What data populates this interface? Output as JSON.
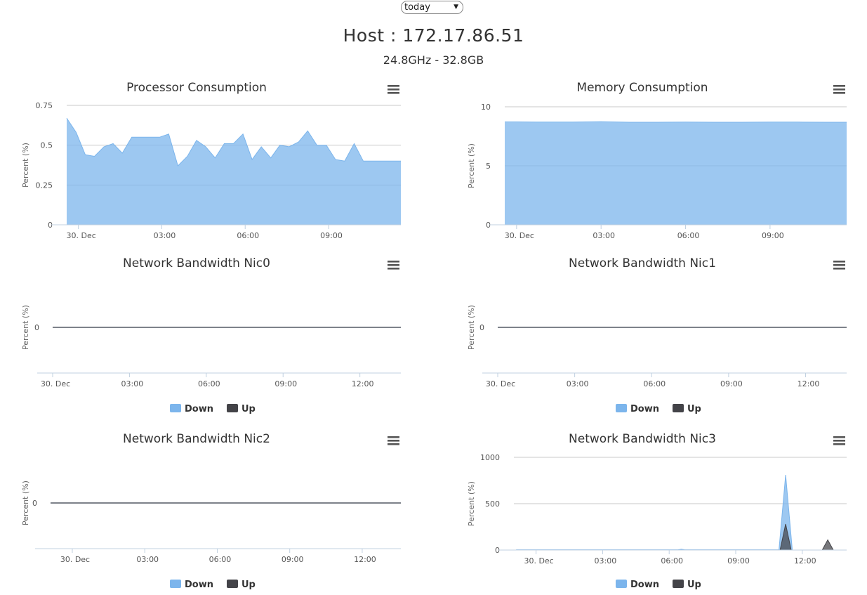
{
  "range_select": {
    "value": "today"
  },
  "host": {
    "title": "Host : 172.17.86.51",
    "specs": "24.8GHz - 32.8GB"
  },
  "chart_data": [
    {
      "id": "cpu",
      "type": "area",
      "title": "Processor Consumption",
      "ylabel": "Percent (%)",
      "ylim": [
        0,
        0.75
      ],
      "yticks": [
        "0",
        "0.25",
        "0.5",
        "0.75"
      ],
      "xlim": [
        -0.42,
        11.6
      ],
      "xticks": [
        {
          "label": "30. Dec",
          "x": 0
        },
        {
          "label": "03:00",
          "x": 3
        },
        {
          "label": "06:00",
          "x": 6
        },
        {
          "label": "09:00",
          "x": 9
        }
      ],
      "series": [
        {
          "color": "#7cb5ec",
          "x": [
            -0.42,
            -0.08,
            0.25,
            0.58,
            0.92,
            1.25,
            1.58,
            1.92,
            2.25,
            2.58,
            2.92,
            3.25,
            3.58,
            3.92,
            4.25,
            4.58,
            4.92,
            5.25,
            5.58,
            5.92,
            6.25,
            6.58,
            6.92,
            7.25,
            7.58,
            7.92,
            8.25,
            8.58,
            8.92,
            9.25,
            9.58,
            9.92,
            10.25,
            10.58,
            10.92,
            11.25,
            11.6
          ],
          "values": [
            0.67,
            0.58,
            0.44,
            0.43,
            0.49,
            0.51,
            0.45,
            0.55,
            0.55,
            0.55,
            0.55,
            0.57,
            0.37,
            0.43,
            0.53,
            0.49,
            0.42,
            0.51,
            0.51,
            0.57,
            0.41,
            0.49,
            0.42,
            0.5,
            0.49,
            0.52,
            0.59,
            0.5,
            0.5,
            0.41,
            0.4,
            0.51,
            0.4,
            0.4,
            0.4,
            0.4,
            0.4
          ]
        }
      ]
    },
    {
      "id": "mem",
      "type": "area",
      "title": "Memory Consumption",
      "ylabel": "Percent (%)",
      "ylim": [
        0,
        10
      ],
      "yticks": [
        "0",
        "5",
        "10"
      ],
      "xlim": [
        -0.42,
        11.72
      ],
      "xticks": [
        {
          "label": "30. Dec",
          "x": 0
        },
        {
          "label": "03:00",
          "x": 3
        },
        {
          "label": "06:00",
          "x": 6
        },
        {
          "label": "09:00",
          "x": 9
        }
      ],
      "series": [
        {
          "color": "#7cb5ec",
          "x": [
            -0.42,
            0,
            1,
            2,
            3,
            4,
            5,
            6,
            7,
            8,
            9,
            10,
            11,
            11.72
          ],
          "values": [
            8.72,
            8.72,
            8.7,
            8.7,
            8.73,
            8.69,
            8.69,
            8.71,
            8.69,
            8.69,
            8.7,
            8.7,
            8.69,
            8.69
          ]
        }
      ]
    },
    {
      "id": "nic0",
      "type": "area",
      "title": "Network Bandwidth Nic0",
      "ylabel": "Percent (%)",
      "yticks": [
        "0"
      ],
      "xlim": [
        0,
        13.6
      ],
      "xticks": [
        {
          "label": "30. Dec",
          "x": 0
        },
        {
          "label": "03:00",
          "x": 3
        },
        {
          "label": "06:00",
          "x": 6
        },
        {
          "label": "09:00",
          "x": 9
        },
        {
          "label": "12:00",
          "x": 12
        }
      ],
      "legend": [
        "Down",
        "Up"
      ],
      "series": [
        {
          "name": "Down",
          "color": "#7cb5ec",
          "x": [
            0,
            13.6
          ],
          "values": [
            0,
            0
          ]
        },
        {
          "name": "Up",
          "color": "#434348",
          "x": [
            0,
            13.6
          ],
          "values": [
            0,
            0
          ]
        }
      ]
    },
    {
      "id": "nic1",
      "type": "area",
      "title": "Network Bandwidth Nic1",
      "ylabel": "Percent (%)",
      "yticks": [
        "0"
      ],
      "xlim": [
        0,
        13.6
      ],
      "xticks": [
        {
          "label": "30. Dec",
          "x": 0
        },
        {
          "label": "03:00",
          "x": 3
        },
        {
          "label": "06:00",
          "x": 6
        },
        {
          "label": "09:00",
          "x": 9
        },
        {
          "label": "12:00",
          "x": 12
        }
      ],
      "legend": [
        "Down",
        "Up"
      ],
      "series": [
        {
          "name": "Down",
          "color": "#7cb5ec",
          "x": [
            0,
            13.6
          ],
          "values": [
            0,
            0
          ]
        },
        {
          "name": "Up",
          "color": "#434348",
          "x": [
            0,
            13.6
          ],
          "values": [
            0,
            0
          ]
        }
      ]
    },
    {
      "id": "nic2",
      "type": "area",
      "title": "Network Bandwidth Nic2",
      "ylabel": "Percent (%)",
      "yticks": [
        "0"
      ],
      "xlim": [
        -0.9,
        13.6
      ],
      "xticks": [
        {
          "label": "30. Dec",
          "x": 0
        },
        {
          "label": "03:00",
          "x": 3
        },
        {
          "label": "06:00",
          "x": 6
        },
        {
          "label": "09:00",
          "x": 9
        },
        {
          "label": "12:00",
          "x": 12
        }
      ],
      "legend": [
        "Down",
        "Up"
      ],
      "series": [
        {
          "name": "Down",
          "color": "#7cb5ec",
          "x": [
            -0.9,
            13.6
          ],
          "values": [
            0,
            0
          ]
        },
        {
          "name": "Up",
          "color": "#434348",
          "x": [
            -0.9,
            13.6
          ],
          "values": [
            0,
            0
          ]
        }
      ]
    },
    {
      "id": "nic3",
      "type": "area",
      "title": "Network Bandwidth Nic3",
      "ylabel": "Percent (%)",
      "ylim": [
        0,
        1000
      ],
      "yticks": [
        "0",
        "500",
        "1000"
      ],
      "xlim": [
        -1.0,
        14.0
      ],
      "xticks": [
        {
          "label": "30. Dec",
          "x": 0
        },
        {
          "label": "03:00",
          "x": 3
        },
        {
          "label": "06:00",
          "x": 6
        },
        {
          "label": "09:00",
          "x": 9
        },
        {
          "label": "12:00",
          "x": 12
        }
      ],
      "legend": [
        "Down",
        "Up"
      ],
      "series": [
        {
          "name": "Down",
          "color": "#7cb5ec",
          "x": [
            -0.9,
            6.4,
            6.55,
            6.7,
            10.95,
            11.25,
            11.55,
            13.5
          ],
          "values": [
            3,
            3,
            8,
            3,
            3,
            810,
            0,
            0
          ]
        },
        {
          "name": "Up",
          "color": "#434348",
          "x": [
            -0.9,
            11.0,
            11.25,
            11.5,
            12.9,
            13.15,
            13.4
          ],
          "values": [
            0,
            0,
            280,
            0,
            0,
            110,
            0
          ]
        }
      ]
    }
  ]
}
